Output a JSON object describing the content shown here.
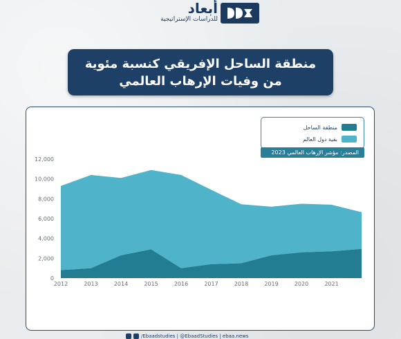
{
  "brand": {
    "name": "أبعاد",
    "tagline": "للدراسات الإستراتيجية"
  },
  "title": {
    "line1": "منطقة الساحل الإفريقي كنسبة مئوية",
    "line2": "من وفيات الإرهاب العالمي"
  },
  "legend": {
    "items": [
      {
        "label": "منطقة الساحل",
        "color": "#237d92"
      },
      {
        "label": "بقية دول العالم",
        "color": "#4fb3c9"
      }
    ]
  },
  "source": "المصدر: مؤشر الإرهاب العالمي 2023",
  "footer": {
    "text": "/Ebaadstudies | @EbaadStudies | ebaa.news"
  },
  "chart_data": {
    "type": "area",
    "stacked": true,
    "x": [
      2012,
      2013,
      2014,
      2015,
      2016,
      2017,
      2018,
      2019,
      2020,
      2021,
      2022
    ],
    "xtick_labels": [
      "2012",
      "2013",
      "2014",
      "2015",
      "2016",
      "2017",
      "2018",
      "2019",
      "2020",
      "2021"
    ],
    "ylim": [
      0,
      12000
    ],
    "yticks": [
      0,
      2000,
      4000,
      6000,
      8000,
      10000,
      12000
    ],
    "ytick_labels": [
      "0",
      "2,000",
      "4,000",
      "6,000",
      "8,000",
      "10,000",
      "12,000"
    ],
    "grid": false,
    "legend_position": "top-right",
    "series": [
      {
        "name": "منطقة الساحل",
        "color": "#237d92",
        "values": [
          800,
          1000,
          2300,
          2900,
          1000,
          1400,
          1500,
          2300,
          2600,
          2700,
          2950
        ]
      },
      {
        "name": "بقية دول العالم",
        "color": "#4fb3c9",
        "values": [
          8500,
          9400,
          7800,
          8000,
          9400,
          7500,
          5950,
          4900,
          4900,
          4700,
          3700
        ]
      }
    ]
  }
}
